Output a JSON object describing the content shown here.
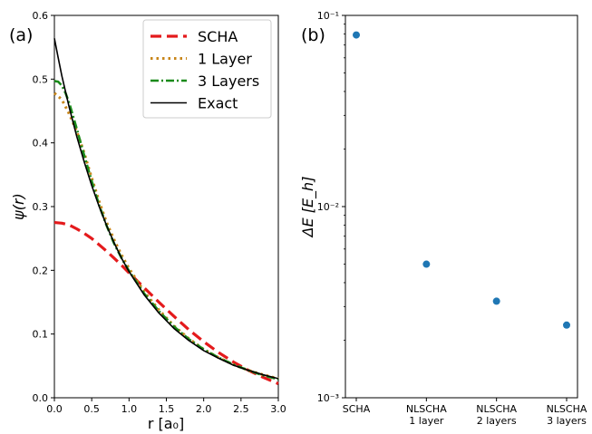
{
  "chart_data": [
    {
      "panel_label": "(a)",
      "type": "line",
      "xlabel": "r [a₀]",
      "ylabel": "ψ(r)",
      "xlim": [
        0,
        3
      ],
      "ylim": [
        0,
        0.6
      ],
      "xticks": [
        "0.0",
        "0.5",
        "1.0",
        "1.5",
        "2.0",
        "2.5",
        "3.0"
      ],
      "yticks": [
        "0.0",
        "0.1",
        "0.2",
        "0.3",
        "0.4",
        "0.5",
        "0.6"
      ],
      "grid": false,
      "legend_position": "top-right",
      "series": [
        {
          "name": "SCHA",
          "color": "#e41a1c",
          "style": "dashed",
          "x": [
            0,
            0.1,
            0.2,
            0.3,
            0.4,
            0.5,
            0.6,
            0.7,
            0.8,
            0.9,
            1.0,
            1.2,
            1.4,
            1.6,
            1.8,
            2.0,
            2.2,
            2.4,
            2.6,
            2.8,
            3.0
          ],
          "y": [
            0.275,
            0.274,
            0.271,
            0.265,
            0.258,
            0.25,
            0.24,
            0.23,
            0.219,
            0.208,
            0.196,
            0.173,
            0.15,
            0.128,
            0.107,
            0.088,
            0.071,
            0.056,
            0.043,
            0.032,
            0.022
          ]
        },
        {
          "name": "1 Layer",
          "color": "#c8861a",
          "style": "dotted",
          "x": [
            0,
            0.1,
            0.2,
            0.3,
            0.4,
            0.5,
            0.6,
            0.7,
            0.8,
            0.9,
            1.0,
            1.2,
            1.4,
            1.6,
            1.8,
            2.0,
            2.2,
            2.4,
            2.6,
            2.8,
            3.0
          ],
          "y": [
            0.478,
            0.468,
            0.445,
            0.418,
            0.384,
            0.345,
            0.308,
            0.275,
            0.248,
            0.224,
            0.203,
            0.167,
            0.138,
            0.113,
            0.093,
            0.076,
            0.063,
            0.052,
            0.043,
            0.036,
            0.03
          ]
        },
        {
          "name": "3 Layers",
          "color": "#1a8a1a",
          "style": "dashdot",
          "x": [
            0,
            0.05,
            0.1,
            0.15,
            0.2,
            0.3,
            0.4,
            0.5,
            0.6,
            0.7,
            0.8,
            0.9,
            1.0,
            1.2,
            1.4,
            1.6,
            1.8,
            2.0,
            2.2,
            2.4,
            2.6,
            2.8,
            3.0
          ],
          "y": [
            0.497,
            0.496,
            0.49,
            0.478,
            0.462,
            0.422,
            0.38,
            0.34,
            0.302,
            0.27,
            0.242,
            0.219,
            0.199,
            0.164,
            0.136,
            0.112,
            0.092,
            0.076,
            0.063,
            0.052,
            0.043,
            0.035,
            0.029
          ]
        },
        {
          "name": "Exact",
          "color": "#000000",
          "style": "solid",
          "x": [
            0,
            0.05,
            0.1,
            0.2,
            0.3,
            0.4,
            0.5,
            0.6,
            0.7,
            0.8,
            0.9,
            1.0,
            1.2,
            1.4,
            1.6,
            1.8,
            2.0,
            2.2,
            2.4,
            2.6,
            2.8,
            3.0
          ],
          "y": [
            0.564,
            0.534,
            0.505,
            0.455,
            0.41,
            0.37,
            0.333,
            0.3,
            0.27,
            0.243,
            0.219,
            0.198,
            0.162,
            0.133,
            0.109,
            0.09,
            0.074,
            0.062,
            0.051,
            0.043,
            0.036,
            0.03
          ]
        }
      ]
    },
    {
      "panel_label": "(b)",
      "type": "scatter",
      "ylabel": "ΔE [E_h]",
      "yscale": "log",
      "ylim": [
        0.001,
        0.1
      ],
      "yticks": [
        "10⁻³",
        "10⁻²",
        "10⁻¹"
      ],
      "grid": false,
      "color": "#1f77b4",
      "categories": [
        [
          "SCHA"
        ],
        [
          "NLSCHA",
          "1 layer"
        ],
        [
          "NLSCHA",
          "2 layers"
        ],
        [
          "NLSCHA",
          "3 layers"
        ]
      ],
      "values": [
        0.079,
        0.005,
        0.0032,
        0.0024
      ]
    }
  ]
}
